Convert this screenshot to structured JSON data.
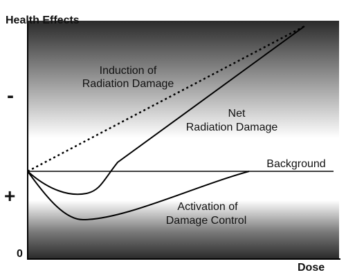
{
  "axes": {
    "y_label": "Health Effects",
    "x_label": "Dose",
    "minus": "-",
    "plus": "+",
    "origin": "0"
  },
  "curves": {
    "induction": {
      "lines": [
        "Induction of",
        "Radiation Damage"
      ]
    },
    "net": {
      "lines": [
        "Net",
        "Radiation Damage"
      ]
    },
    "background": {
      "lines": [
        "Background"
      ]
    },
    "activation": {
      "lines": [
        "Activation of",
        "Damage Control"
      ]
    }
  }
}
